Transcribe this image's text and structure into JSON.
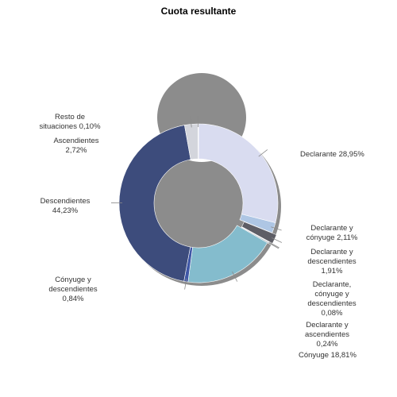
{
  "chart_data": {
    "type": "pie",
    "variant": "donut",
    "title": "Cuota resultante",
    "legend": "none",
    "slices": [
      {
        "name": "Declarante",
        "value": 28.95,
        "value_text": "28,95%",
        "label_lines": [
          "Declarante 28,95%"
        ],
        "color": "#d9dcf0"
      },
      {
        "name": "Declarante y cónyuge",
        "value": 2.11,
        "value_text": "2,11%",
        "label_lines": [
          "Declarante y",
          "cónyuge 2,11%"
        ],
        "color": "#aec6e4"
      },
      {
        "name": "Declarante y descendientes",
        "value": 1.91,
        "value_text": "1,91%",
        "label_lines": [
          "Declarante y",
          "descendientes",
          "1,91%"
        ],
        "color": "#5e5e66"
      },
      {
        "name": "Declarante, cónyuge y descendientes",
        "value": 0.08,
        "value_text": "0,08%",
        "label_lines": [
          "Declarante,",
          "cónyuge y",
          "descendientes",
          "0,08%"
        ],
        "color": "#3c3c44"
      },
      {
        "name": "Declarante y ascendientes",
        "value": 0.24,
        "value_text": "0,24%",
        "label_lines": [
          "Declarante y",
          "ascendientes",
          "0,24%"
        ],
        "color": "#a8b0b8"
      },
      {
        "name": "Cónyuge",
        "value": 18.81,
        "value_text": "18,81%",
        "label_lines": [
          "Cónyuge 18,81%"
        ],
        "color": "#84bccd"
      },
      {
        "name": "Cónyuge y descendientes",
        "value": 0.84,
        "value_text": "0,84%",
        "label_lines": [
          "Cónyuge y",
          "descendientes",
          "0,84%"
        ],
        "color": "#3f57a6"
      },
      {
        "name": "Descendientes",
        "value": 44.23,
        "value_text": "44,23%",
        "label_lines": [
          "Descendientes",
          "44,23%"
        ],
        "color": "#3d4c7c"
      },
      {
        "name": "Ascendientes",
        "value": 2.72,
        "value_text": "2,72%",
        "label_lines": [
          "Ascendientes",
          "2,72%"
        ],
        "color": "#d3d5dc"
      },
      {
        "name": "Resto de situaciones",
        "value": 0.1,
        "value_text": "0,10%",
        "label_lines": [
          "Resto de",
          "situaciones 0,10%"
        ],
        "color": "#9a9a9a"
      }
    ]
  }
}
